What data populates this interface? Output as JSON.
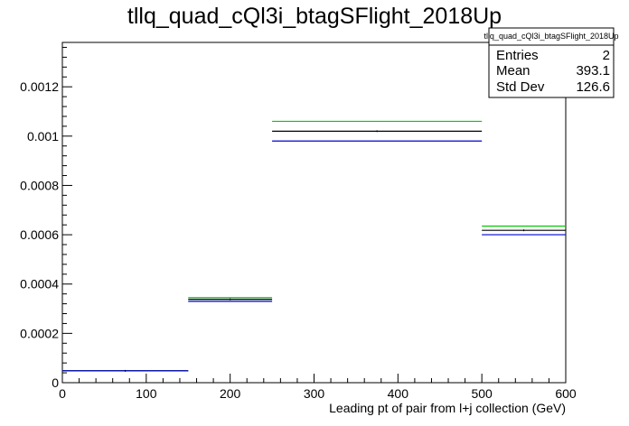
{
  "chart_data": {
    "type": "step",
    "title": "tllq_quad_cQl3i_btagSFlight_2018Up",
    "xlabel": "Leading pt of pair from l+j collection (GeV)",
    "ylabel": "",
    "xlim": [
      0,
      600
    ],
    "ylim": [
      0,
      0.00138
    ],
    "x_ticks": [
      0,
      100,
      200,
      300,
      400,
      500,
      600
    ],
    "y_ticks": [
      0,
      0.0002,
      0.0004,
      0.0006,
      0.0008,
      0.001,
      0.0012
    ],
    "y_tick_labels": [
      "0",
      "0.0002",
      "0.0004",
      "0.0006",
      "0.0008",
      "0.001",
      "0.0012"
    ],
    "x_tick_labels": [
      "0",
      "100",
      "200",
      "300",
      "400",
      "500",
      "600"
    ],
    "bin_edges": [
      0,
      150,
      250,
      500,
      600
    ],
    "series": [
      {
        "color": "#000000",
        "values": [
          4.8e-05,
          0.000338,
          0.00102,
          0.000618
        ]
      },
      {
        "color": "#00cc00",
        "values": [
          4.8e-05,
          0.000345,
          0.00106,
          0.000635
        ]
      },
      {
        "color": "#0000cc",
        "values": [
          4.8e-05,
          0.00033,
          0.00098,
          0.0006
        ]
      }
    ],
    "stats_box": {
      "name": "tllq_quad_cQl3i_btagSFlight_2018Up",
      "rows": [
        {
          "label": "Entries",
          "value": "2"
        },
        {
          "label": "Mean",
          "value": "393.1"
        },
        {
          "label": "Std Dev",
          "value": "126.6"
        }
      ]
    }
  }
}
